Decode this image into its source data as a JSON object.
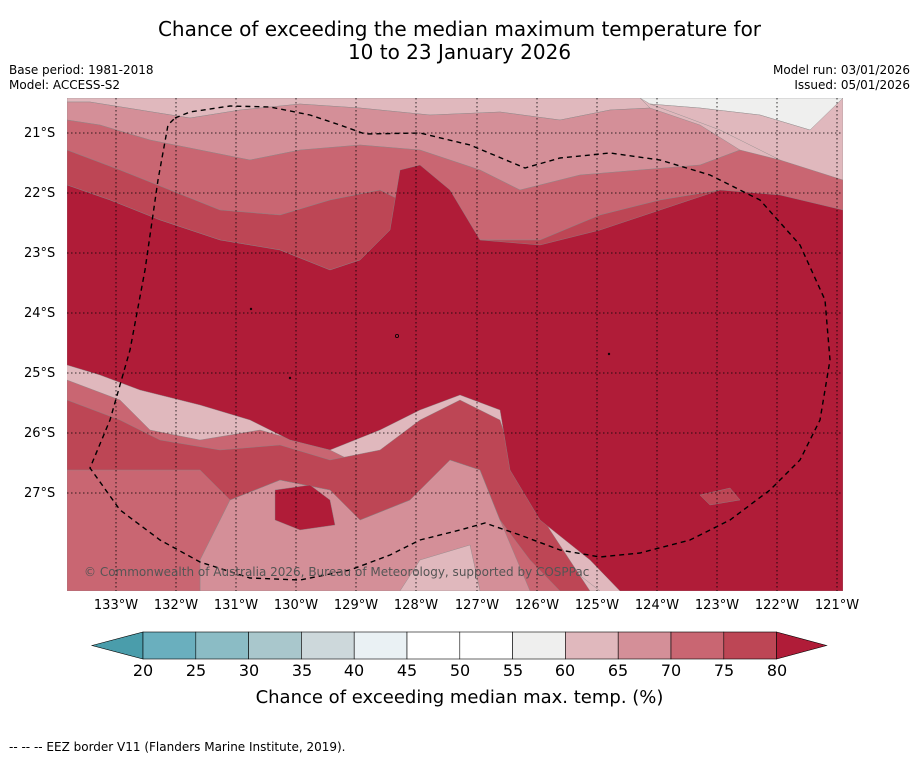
{
  "title": {
    "line1": "Chance of exceeding the median maximum temperature for",
    "line2": "10 to 23 January 2026"
  },
  "meta": {
    "base_period": "Base period: 1981-2018",
    "model": "Model: ACCESS-S2",
    "model_run": "Model run: 03/01/2026",
    "issued": "Issued: 05/01/2026"
  },
  "map": {
    "lat_labels": [
      "21°S",
      "22°S",
      "23°S",
      "24°S",
      "25°S",
      "26°S",
      "27°S"
    ],
    "lon_labels": [
      "133°W",
      "132°W",
      "131°W",
      "130°W",
      "129°W",
      "128°W",
      "127°W",
      "126°W",
      "125°W",
      "124°W",
      "123°W",
      "122°W",
      "121°W"
    ],
    "copyright": "© Commonwealth of Australia 2026, Bureau of Meteorology, supported by COSPPac",
    "colors": {
      "c60_65": "#e0b8bd",
      "c65_70": "#d48f98",
      "c70_75": "#c96672",
      "c75_80": "#bd4655",
      "c80plus": "#b01c38",
      "c55_60": "#efefee",
      "c50_55": "#ffffff",
      "grid": "#000000"
    }
  },
  "colorbar": {
    "ticks": [
      "20",
      "25",
      "30",
      "35",
      "40",
      "45",
      "50",
      "55",
      "60",
      "65",
      "70",
      "75",
      "80"
    ],
    "label": "Chance of exceeding median max. temp. (%)",
    "colors": [
      "#4a9dab",
      "#6aafbe",
      "#8bbcc5",
      "#a9c7cc",
      "#cdd8db",
      "#eaf1f4",
      "#ffffff",
      "#ffffff",
      "#efefee",
      "#e0b8bd",
      "#d48f98",
      "#c96672",
      "#bd4655",
      "#b01c38"
    ]
  },
  "footnote": "--  --  -- EEZ border V11 (Flanders Marine Institute, 2019)."
}
